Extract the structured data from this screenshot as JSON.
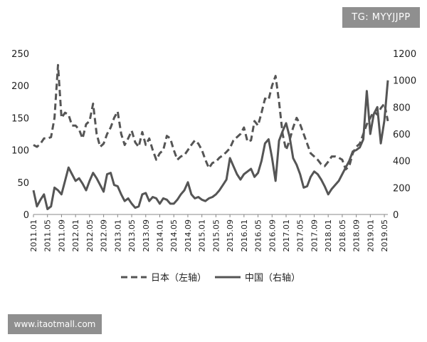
{
  "watermarks": {
    "top": "TG: MYYJJPP",
    "bottom": "www.itaotmall.com"
  },
  "chart_data": {
    "type": "line",
    "title": "",
    "x": [
      "2011.01",
      "2011.02",
      "2011.03",
      "2011.04",
      "2011.05",
      "2011.06",
      "2011.07",
      "2011.08",
      "2011.09",
      "2011.10",
      "2011.11",
      "2011.12",
      "2012.01",
      "2012.02",
      "2012.03",
      "2012.04",
      "2012.05",
      "2012.06",
      "2012.07",
      "2012.08",
      "2012.09",
      "2012.10",
      "2012.11",
      "2012.12",
      "2013.01",
      "2013.02",
      "2013.03",
      "2013.04",
      "2013.05",
      "2013.06",
      "2013.07",
      "2013.08",
      "2013.09",
      "2013.10",
      "2013.11",
      "2013.12",
      "2014.01",
      "2014.02",
      "2014.03",
      "2014.04",
      "2014.05",
      "2014.06",
      "2014.07",
      "2014.08",
      "2014.09",
      "2014.10",
      "2014.11",
      "2014.12",
      "2015.01",
      "2015.02",
      "2015.03",
      "2015.04",
      "2015.05",
      "2015.06",
      "2015.07",
      "2015.08",
      "2015.09",
      "2015.10",
      "2015.11",
      "2015.12",
      "2016.01",
      "2016.02",
      "2016.03",
      "2016.04",
      "2016.05",
      "2016.06",
      "2016.07",
      "2016.08",
      "2016.09",
      "2016.10",
      "2016.11",
      "2016.12",
      "2017.01",
      "2017.02",
      "2017.03",
      "2017.04",
      "2017.05",
      "2017.06",
      "2017.07",
      "2017.08",
      "2017.09",
      "2017.10",
      "2017.11",
      "2017.12",
      "2018.01",
      "2018.02",
      "2018.03",
      "2018.04",
      "2018.05",
      "2018.06",
      "2018.07",
      "2018.08",
      "2018.09",
      "2018.10",
      "2018.11",
      "2018.12",
      "2019.01",
      "2019.02",
      "2019.03",
      "2019.04",
      "2019.05",
      "2019.06"
    ],
    "xtick_labels": [
      "2011.01",
      "2011.05",
      "2011.09",
      "2012.01",
      "2012.05",
      "2012.09",
      "2013.01",
      "2013.05",
      "2013.09",
      "2014.01",
      "2014.05",
      "2014.09",
      "2015.01",
      "2015.05",
      "2015.09",
      "2016.01",
      "2016.05",
      "2016.09",
      "2017.01",
      "2017.05",
      "2017.09",
      "2018.01",
      "2018.05",
      "2018.09",
      "2019.01",
      "2019.05"
    ],
    "left_axis": {
      "ylim": [
        0,
        250
      ],
      "ticks": [
        "0",
        "50",
        "100",
        "150",
        "200",
        "250"
      ]
    },
    "right_axis": {
      "ylim": [
        0,
        1200
      ],
      "ticks": [
        "0",
        "200",
        "400",
        "600",
        "800",
        "1000",
        "1200"
      ]
    },
    "series": [
      {
        "name": "日本（左轴）",
        "axis": "left",
        "style": "dashed",
        "values": [
          108,
          105,
          110,
          118,
          118,
          120,
          150,
          232,
          150,
          158,
          155,
          138,
          138,
          132,
          118,
          140,
          145,
          172,
          125,
          105,
          110,
          125,
          135,
          150,
          160,
          125,
          108,
          118,
          130,
          112,
          105,
          128,
          108,
          118,
          100,
          85,
          95,
          100,
          122,
          118,
          100,
          85,
          90,
          92,
          100,
          108,
          115,
          110,
          100,
          85,
          72,
          80,
          82,
          88,
          92,
          97,
          103,
          115,
          120,
          125,
          135,
          113,
          115,
          145,
          138,
          158,
          180,
          178,
          200,
          215,
          175,
          125,
          100,
          115,
          135,
          150,
          140,
          125,
          110,
          95,
          90,
          85,
          78,
          75,
          82,
          90,
          90,
          88,
          85,
          70,
          75,
          95,
          105,
          110,
          125,
          140,
          150,
          160,
          155,
          165,
          172,
          145
        ]
      },
      {
        "name": "中国（右轴）",
        "axis": "right",
        "style": "solid",
        "values": [
          180,
          60,
          110,
          150,
          40,
          60,
          200,
          180,
          150,
          250,
          350,
          300,
          250,
          270,
          230,
          180,
          250,
          310,
          270,
          220,
          170,
          300,
          310,
          220,
          210,
          150,
          100,
          120,
          80,
          50,
          60,
          150,
          160,
          100,
          130,
          120,
          80,
          120,
          110,
          80,
          80,
          110,
          150,
          180,
          240,
          150,
          120,
          130,
          110,
          100,
          120,
          130,
          150,
          180,
          220,
          260,
          420,
          360,
          300,
          260,
          300,
          320,
          340,
          280,
          310,
          400,
          530,
          560,
          420,
          250,
          550,
          620,
          680,
          580,
          420,
          370,
          300,
          200,
          210,
          280,
          320,
          300,
          260,
          210,
          150,
          190,
          220,
          250,
          300,
          350,
          400,
          470,
          480,
          500,
          560,
          920,
          600,
          750,
          800,
          530,
          700,
          1000
        ]
      }
    ],
    "legend": {
      "position": "bottom-center",
      "entries": [
        "日本（左轴）",
        "中国（右轴）"
      ]
    },
    "grid": false,
    "xlabel": "",
    "ylabel": "",
    "colors": {
      "line": "#555555",
      "axis": "#888888",
      "text": "#222222"
    }
  }
}
